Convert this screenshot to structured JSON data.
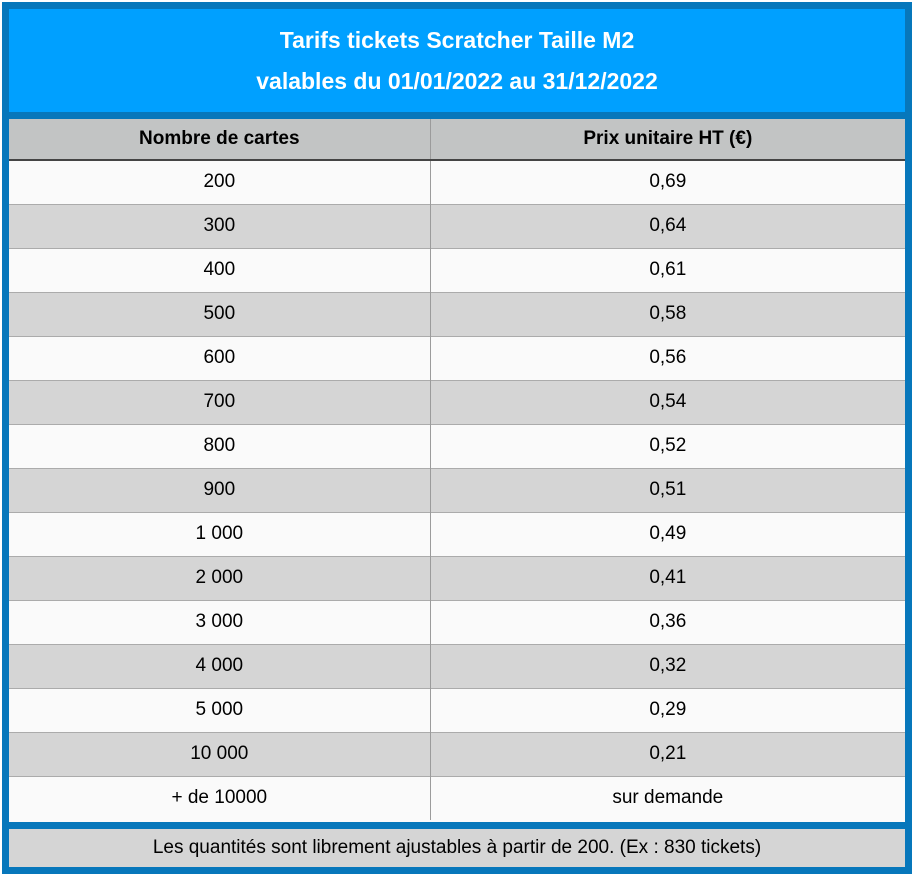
{
  "header": {
    "title_line1": "Tarifs tickets Scratcher Taille M2",
    "title_line2": "valables du 01/01/2022 au 31/12/2022"
  },
  "table": {
    "columns": [
      "Nombre de cartes",
      "Prix unitaire HT (€)"
    ],
    "rows": [
      [
        "200",
        "0,69"
      ],
      [
        "300",
        "0,64"
      ],
      [
        "400",
        "0,61"
      ],
      [
        "500",
        "0,58"
      ],
      [
        "600",
        "0,56"
      ],
      [
        "700",
        "0,54"
      ],
      [
        "800",
        "0,52"
      ],
      [
        "900",
        "0,51"
      ],
      [
        "1 000",
        "0,49"
      ],
      [
        "2 000",
        "0,41"
      ],
      [
        "3 000",
        "0,36"
      ],
      [
        "4 000",
        "0,32"
      ],
      [
        "5 000",
        "0,29"
      ],
      [
        "10 000",
        "0,21"
      ],
      [
        "+ de 10000",
        "sur demande"
      ]
    ]
  },
  "footer": {
    "note": "Les quantités sont librement ajustables à partir de 200. (Ex : 830 tickets)"
  },
  "colors": {
    "accent_blue": "#00A0FF",
    "frame_blue": "#0777BB",
    "column_header_gray": "#C2C4C4",
    "row_alt_gray": "#D5D5D5",
    "row_white": "#FAFAFA",
    "title_text": "#FFFFFF",
    "body_text": "#000000"
  },
  "chart_data": {
    "type": "table",
    "title": "Tarifs tickets Scratcher Taille M2 valables du 01/01/2022 au 31/12/2022",
    "columns": [
      "Nombre de cartes",
      "Prix unitaire HT (€)"
    ],
    "rows": [
      [
        "200",
        "0,69"
      ],
      [
        "300",
        "0,64"
      ],
      [
        "400",
        "0,61"
      ],
      [
        "500",
        "0,58"
      ],
      [
        "600",
        "0,56"
      ],
      [
        "700",
        "0,54"
      ],
      [
        "800",
        "0,52"
      ],
      [
        "900",
        "0,51"
      ],
      [
        "1 000",
        "0,49"
      ],
      [
        "2 000",
        "0,41"
      ],
      [
        "3 000",
        "0,36"
      ],
      [
        "4 000",
        "0,32"
      ],
      [
        "5 000",
        "0,29"
      ],
      [
        "10 000",
        "0,21"
      ],
      [
        "+ de 10000",
        "sur demande"
      ]
    ],
    "note": "Les quantités sont librement ajustables à partir de 200. (Ex : 830 tickets)"
  }
}
